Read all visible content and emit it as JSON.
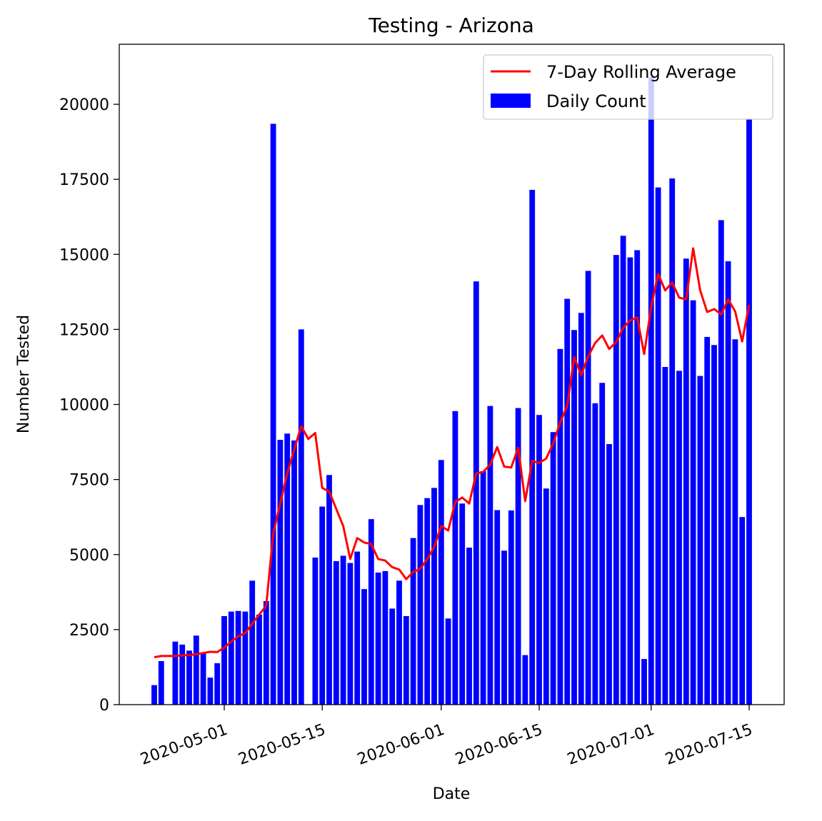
{
  "chart_data": {
    "type": "bar",
    "title": "Testing - Arizona",
    "xlabel": "Date",
    "ylabel": "Number Tested",
    "x_ticks": [
      "2020-05-01",
      "2020-05-15",
      "2020-06-01",
      "2020-06-15",
      "2020-07-01",
      "2020-07-15"
    ],
    "y_ticks": [
      0,
      2500,
      5000,
      7500,
      10000,
      12500,
      15000,
      17500,
      20000
    ],
    "ylim": [
      0,
      22000
    ],
    "xlim": [
      "2020-04-16",
      "2020-07-20"
    ],
    "grid": false,
    "legend_position": "top-right",
    "series": [
      {
        "name": "Daily Count",
        "kind": "bar",
        "color": "#0000ff",
        "dates": [
          "2020-04-21",
          "2020-04-22",
          "2020-04-23",
          "2020-04-24",
          "2020-04-25",
          "2020-04-26",
          "2020-04-27",
          "2020-04-28",
          "2020-04-29",
          "2020-04-30",
          "2020-05-01",
          "2020-05-02",
          "2020-05-03",
          "2020-05-04",
          "2020-05-05",
          "2020-05-06",
          "2020-05-07",
          "2020-05-08",
          "2020-05-09",
          "2020-05-10",
          "2020-05-11",
          "2020-05-12",
          "2020-05-13",
          "2020-05-14",
          "2020-05-15",
          "2020-05-16",
          "2020-05-17",
          "2020-05-18",
          "2020-05-19",
          "2020-05-20",
          "2020-05-21",
          "2020-05-22",
          "2020-05-23",
          "2020-05-24",
          "2020-05-25",
          "2020-05-26",
          "2020-05-27",
          "2020-05-28",
          "2020-05-29",
          "2020-05-30",
          "2020-05-31",
          "2020-06-01",
          "2020-06-02",
          "2020-06-03",
          "2020-06-04",
          "2020-06-05",
          "2020-06-06",
          "2020-06-07",
          "2020-06-08",
          "2020-06-09",
          "2020-06-10",
          "2020-06-11",
          "2020-06-12",
          "2020-06-13",
          "2020-06-14",
          "2020-06-15",
          "2020-06-16",
          "2020-06-17",
          "2020-06-18",
          "2020-06-19",
          "2020-06-20",
          "2020-06-21",
          "2020-06-22",
          "2020-06-23",
          "2020-06-24",
          "2020-06-25",
          "2020-06-26",
          "2020-06-27",
          "2020-06-28",
          "2020-06-29",
          "2020-06-30",
          "2020-07-01",
          "2020-07-02",
          "2020-07-03",
          "2020-07-04",
          "2020-07-05",
          "2020-07-06",
          "2020-07-07",
          "2020-07-08",
          "2020-07-09",
          "2020-07-10",
          "2020-07-11",
          "2020-07-12",
          "2020-07-13",
          "2020-07-14",
          "2020-07-15"
        ],
        "values": [
          650,
          1450,
          0,
          2100,
          2000,
          1800,
          2300,
          1700,
          900,
          1380,
          2950,
          3100,
          3120,
          3100,
          4130,
          3000,
          3450,
          19350,
          8820,
          9030,
          8800,
          12500,
          0,
          4900,
          6600,
          7650,
          4780,
          4960,
          4720,
          5100,
          3850,
          6180,
          4400,
          4450,
          3200,
          4130,
          2950,
          5550,
          6650,
          6880,
          7220,
          8150,
          2870,
          9780,
          6700,
          5230,
          14100,
          7780,
          9950,
          6480,
          5130,
          6470,
          9880,
          1650,
          17150,
          9650,
          7200,
          9080,
          11850,
          13520,
          12480,
          13050,
          14450,
          10040,
          10720,
          8680,
          14980,
          15620,
          14900,
          15140,
          1520,
          20900,
          17230,
          11250,
          17530,
          11120,
          14860,
          13470,
          10950,
          12250,
          11980,
          16140,
          14770,
          12170,
          6250,
          19520
        ]
      },
      {
        "name": "7-Day Rolling Average",
        "kind": "line",
        "color": "#ff0000",
        "dates": [
          "2020-04-21",
          "2020-04-22",
          "2020-04-23",
          "2020-04-24",
          "2020-04-25",
          "2020-04-26",
          "2020-04-27",
          "2020-04-28",
          "2020-04-29",
          "2020-04-30",
          "2020-05-01",
          "2020-05-02",
          "2020-05-03",
          "2020-05-04",
          "2020-05-05",
          "2020-05-06",
          "2020-05-07",
          "2020-05-08",
          "2020-05-09",
          "2020-05-10",
          "2020-05-11",
          "2020-05-12",
          "2020-05-13",
          "2020-05-14",
          "2020-05-15",
          "2020-05-16",
          "2020-05-17",
          "2020-05-18",
          "2020-05-19",
          "2020-05-20",
          "2020-05-21",
          "2020-05-22",
          "2020-05-23",
          "2020-05-24",
          "2020-05-25",
          "2020-05-26",
          "2020-05-27",
          "2020-05-28",
          "2020-05-29",
          "2020-05-30",
          "2020-05-31",
          "2020-06-01",
          "2020-06-02",
          "2020-06-03",
          "2020-06-04",
          "2020-06-05",
          "2020-06-06",
          "2020-06-07",
          "2020-06-08",
          "2020-06-09",
          "2020-06-10",
          "2020-06-11",
          "2020-06-12",
          "2020-06-13",
          "2020-06-14",
          "2020-06-15",
          "2020-06-16",
          "2020-06-17",
          "2020-06-18",
          "2020-06-19",
          "2020-06-20",
          "2020-06-21",
          "2020-06-22",
          "2020-06-23",
          "2020-06-24",
          "2020-06-25",
          "2020-06-26",
          "2020-06-27",
          "2020-06-28",
          "2020-06-29",
          "2020-06-30",
          "2020-07-01",
          "2020-07-02",
          "2020-07-03",
          "2020-07-04",
          "2020-07-05",
          "2020-07-06",
          "2020-07-07",
          "2020-07-08",
          "2020-07-09",
          "2020-07-10",
          "2020-07-11",
          "2020-07-12",
          "2020-07-13",
          "2020-07-14",
          "2020-07-15"
        ],
        "values": [
          1580,
          1620,
          1620,
          1620,
          1640,
          1650,
          1680,
          1720,
          1760,
          1750,
          1900,
          2100,
          2280,
          2380,
          2700,
          3000,
          3300,
          5700,
          6700,
          7700,
          8500,
          9280,
          8850,
          9050,
          7220,
          7100,
          6520,
          5950,
          4850,
          5550,
          5400,
          5350,
          4850,
          4800,
          4580,
          4500,
          4180,
          4420,
          4520,
          4850,
          5250,
          5950,
          5800,
          6750,
          6900,
          6700,
          7700,
          7750,
          8000,
          8580,
          7930,
          7900,
          8560,
          6780,
          8120,
          8050,
          8200,
          8700,
          9400,
          9950,
          11580,
          10980,
          11600,
          12050,
          12300,
          11850,
          12080,
          12550,
          12800,
          12900,
          11680,
          13250,
          14350,
          13800,
          14060,
          13560,
          13500,
          15200,
          13800,
          13080,
          13180,
          13000,
          13500,
          13100,
          12100,
          13320
        ]
      }
    ]
  }
}
